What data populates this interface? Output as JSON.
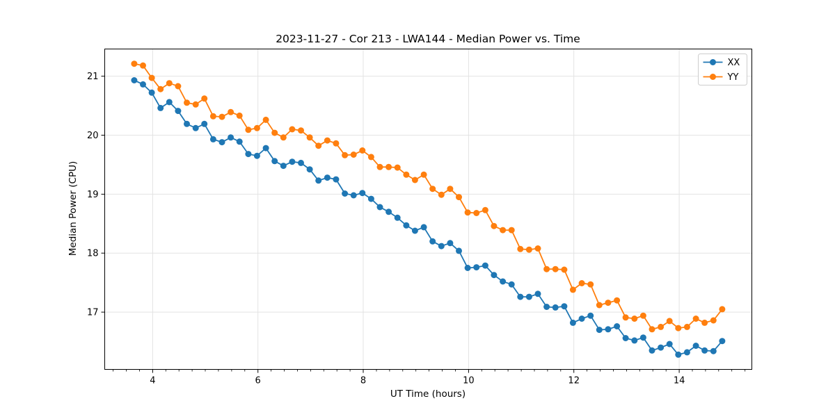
{
  "chart_data": {
    "type": "line",
    "title": "2023-11-27 - Cor 213 - LWA144 - Median Power vs. Time",
    "xlabel": "UT Time (hours)",
    "ylabel": "Median Power (CPU)",
    "xlim": [
      3.09,
      15.38
    ],
    "ylim": [
      16.03,
      21.46
    ],
    "x_major_ticks": [
      4,
      6,
      8,
      10,
      12,
      14
    ],
    "x_minor_tick_step": 0.25,
    "y_major_ticks": [
      17,
      18,
      19,
      20,
      21
    ],
    "grid": "major-gridlines-on",
    "legend_position": "upper right",
    "legend_labels": [
      "XX",
      "YY"
    ],
    "x": [
      3.65,
      3.817,
      3.983,
      4.15,
      4.317,
      4.483,
      4.65,
      4.817,
      4.983,
      5.15,
      5.317,
      5.483,
      5.65,
      5.817,
      5.983,
      6.15,
      6.317,
      6.483,
      6.65,
      6.817,
      6.983,
      7.15,
      7.317,
      7.483,
      7.65,
      7.817,
      7.983,
      8.15,
      8.317,
      8.483,
      8.65,
      8.817,
      8.983,
      9.15,
      9.317,
      9.483,
      9.65,
      9.817,
      9.983,
      10.15,
      10.317,
      10.483,
      10.65,
      10.817,
      10.983,
      11.15,
      11.317,
      11.483,
      11.65,
      11.817,
      11.983,
      12.15,
      12.317,
      12.483,
      12.65,
      12.817,
      12.983,
      13.15,
      13.317,
      13.483,
      13.65,
      13.817,
      13.983,
      14.15,
      14.317,
      14.483,
      14.65,
      14.817
    ],
    "series": [
      {
        "name": "XX",
        "color": "#1f77b4",
        "values": [
          20.93,
          20.86,
          20.72,
          20.46,
          20.56,
          20.41,
          20.19,
          20.12,
          20.19,
          19.93,
          19.88,
          19.96,
          19.89,
          19.68,
          19.65,
          19.78,
          19.56,
          19.48,
          19.55,
          19.53,
          19.42,
          19.23,
          19.28,
          19.25,
          19.01,
          18.98,
          19.02,
          18.92,
          18.78,
          18.7,
          18.6,
          18.47,
          18.38,
          18.44,
          18.2,
          18.12,
          18.17,
          18.04,
          17.75,
          17.76,
          17.79,
          17.63,
          17.52,
          17.47,
          17.26,
          17.26,
          17.31,
          17.09,
          17.08,
          17.1,
          16.82,
          16.89,
          16.94,
          16.7,
          16.71,
          16.76,
          16.56,
          16.52,
          16.57,
          16.35,
          16.4,
          16.46,
          16.28,
          16.32,
          16.43,
          16.35,
          16.34,
          16.51
        ]
      },
      {
        "name": "YY",
        "color": "#ff7f0e",
        "values": [
          21.21,
          21.18,
          20.97,
          20.78,
          20.88,
          20.83,
          20.55,
          20.52,
          20.62,
          20.32,
          20.31,
          20.39,
          20.33,
          20.09,
          20.12,
          20.26,
          20.04,
          19.96,
          20.1,
          20.08,
          19.96,
          19.82,
          19.91,
          19.86,
          19.66,
          19.67,
          19.74,
          19.63,
          19.46,
          19.46,
          19.45,
          19.33,
          19.24,
          19.33,
          19.09,
          18.99,
          19.09,
          18.95,
          18.69,
          18.68,
          18.73,
          18.46,
          18.39,
          18.39,
          18.07,
          18.06,
          18.08,
          17.73,
          17.73,
          17.72,
          17.38,
          17.49,
          17.47,
          17.12,
          17.16,
          17.2,
          16.91,
          16.89,
          16.94,
          16.71,
          16.75,
          16.85,
          16.73,
          16.75,
          16.89,
          16.82,
          16.86,
          17.05
        ]
      }
    ]
  },
  "axes_text": {
    "x_tick_labels": [
      "4",
      "6",
      "8",
      "10",
      "12",
      "14"
    ],
    "y_tick_labels": [
      "17",
      "18",
      "19",
      "20",
      "21"
    ]
  }
}
